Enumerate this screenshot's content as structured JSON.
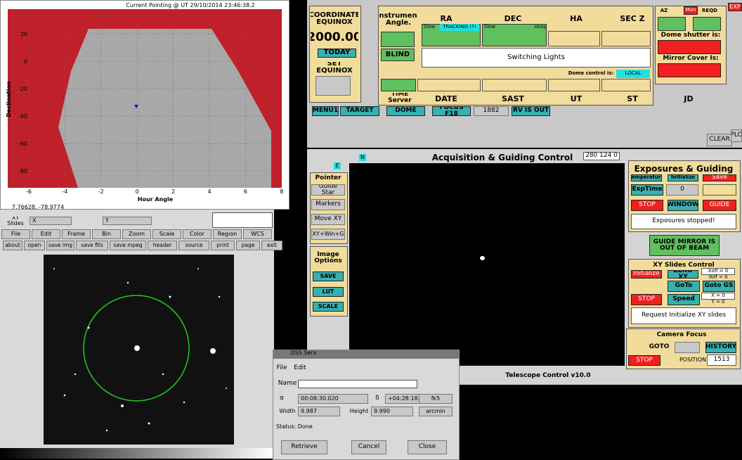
{
  "plot": {
    "title": "Current Pointing @ UT   29/10/2014 23:46:38.2",
    "ylabel": "Declination",
    "xlabel": "Hour Angle",
    "yticks": [
      "20",
      "0",
      "-20",
      "-40",
      "-60",
      "-80"
    ],
    "xticks": [
      "-6",
      "-4",
      "-2",
      "0",
      "2",
      "4",
      "6",
      "8"
    ]
  },
  "ds9": {
    "coords": "7.76628, -78.9774",
    "xy_label": "XY Slides",
    "x": "X",
    "y": "Y",
    "menu": [
      "File",
      "Edit",
      "Frame",
      "Bin",
      "Zoom",
      "Scale",
      "Color",
      "Region",
      "WCS"
    ],
    "buttons": [
      "about",
      "open",
      "save img",
      "save fits",
      "save mpeg",
      "header",
      "source",
      "print",
      "page",
      "exit"
    ]
  },
  "dss": {
    "title": "DSS Serv",
    "menu": [
      "File",
      "Edit"
    ],
    "name": "Name",
    "alpha": "α",
    "ra": "00:08:30.020",
    "delta": "δ",
    "dec": "+04:28:18.16",
    "frame": "fk5",
    "width_label": "Width",
    "width": "9.987",
    "height_label": "Height",
    "height": "9.990",
    "unit": "arcmin",
    "status": "Status: Done",
    "buttons": [
      "Retrieve",
      "Cancel",
      "Close"
    ]
  },
  "top": {
    "equinox_title": "COORDINATE EQUINOX",
    "equinox": "2000.00",
    "today": "TODAY",
    "set_equinox": "SET EQUINOX",
    "instrument": "Instrument Angle.",
    "blind": "BLIND",
    "ra": "RA",
    "dec": "DEC",
    "ha": "HA",
    "secz": "SEC Z",
    "slow1": "Slow",
    "tracking": "TRACKING !?!",
    "slow2": "Slow",
    "okay": "okay",
    "lights": "Switching Lights",
    "dome_control": "Dome control is:",
    "local": "LOCAL",
    "time_server": "TIME Server",
    "date": "DATE",
    "sast": "SAST",
    "ut": "UT",
    "st": "ST",
    "jd": "JD",
    "az": "AZ",
    "man": "Man",
    "reqd": "REQD",
    "shutter": "Dome shutter is:",
    "mirror": "Mirror Cover Is:",
    "exp": "EXP",
    "menu1": "MENU1",
    "target": "TARGET",
    "dome": "DOME",
    "focus": "FOCUS F18",
    "focus_val": "1882",
    "rv": "RV IS OUT",
    "clear": "CLEAR",
    "plo": "PLO"
  },
  "acq": {
    "n": "N",
    "e": "E",
    "title": "Acquisition & Guiding Control",
    "coords": "280 124 0",
    "pointer": "Pointer",
    "guide_star": "Guide Star",
    "markers": "Markers",
    "move_xy": "Move XY",
    "xywin": "XY+Win+G",
    "image_options": "Image Options",
    "save": "SAVE",
    "lut": "LUT",
    "scale": "SCALE",
    "footer": "Telescope Control v10.0"
  },
  "exposure": {
    "title": "Exposures & Guiding",
    "temperature": "Temperature",
    "initialize": "Initialize",
    "save": "Save",
    "exptime": "ExpTime",
    "exp_val": "0",
    "stop": "STOP",
    "window": "WINDOW",
    "guide": "GUIDE",
    "status": "Exposures stopped!",
    "mirror": "GUIDE MIRROR IS OUT OF BEAM"
  },
  "xy": {
    "title": "XY Slides Control",
    "initialize": "Initialize",
    "zero": "ZERO XY",
    "xoff": "Xoff = 0",
    "yoff": "Yoff = 0",
    "goto": "GoTo",
    "goto_gs": "Goto GS",
    "stop": "STOP",
    "speed": "Speed",
    "x": "X = 0",
    "y": "Y = 0",
    "request": "Request Initialize XY slides"
  },
  "focus": {
    "title": "Camera Focus",
    "goto": "GOTO",
    "history": "HISTORY",
    "stop": "STOP",
    "position": "POSITION",
    "value": "1513"
  }
}
